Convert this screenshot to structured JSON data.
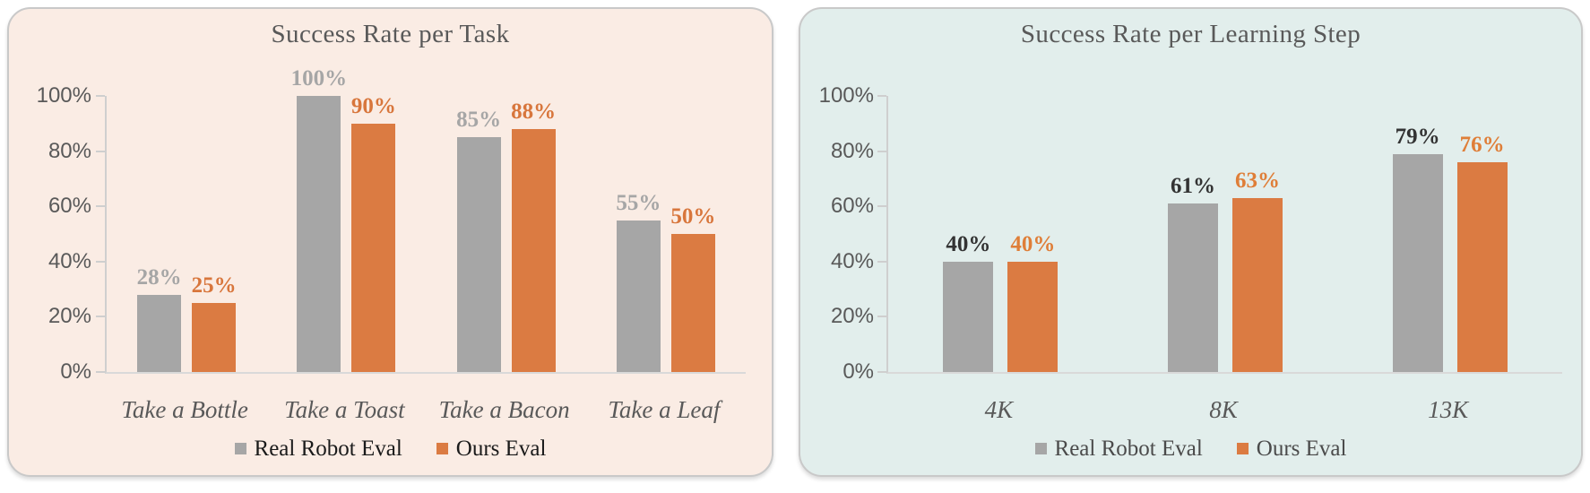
{
  "page": {
    "background": "#FFFFFF"
  },
  "colors": {
    "gray_series": "#A6A6A6",
    "orange_series": "#DB7B42",
    "axis_text": "#595959",
    "title_text": "#595959",
    "axis_line": "#CFCFCF"
  },
  "chart_data": [
    {
      "type": "bar",
      "title": "Success Rate per Task",
      "categories": [
        "Take a Bottle",
        "Take a Toast",
        "Take a Bacon",
        "Take a Leaf"
      ],
      "series": [
        {
          "name": "Real Robot Eval",
          "values": [
            28,
            100,
            85,
            55
          ]
        },
        {
          "name": "Ours Eval",
          "values": [
            25,
            90,
            88,
            50
          ]
        }
      ],
      "value_suffix": "%",
      "xlabel": "",
      "ylabel": "",
      "ylim": [
        0,
        100
      ],
      "y_tick_labels": [
        "100%",
        "80%",
        "60%",
        "40%",
        "20%",
        "0%"
      ],
      "grid": false,
      "legend_position": "bottom",
      "legend_labels": [
        "Real Robot Eval",
        "Ours Eval"
      ],
      "panel_bg": "#FAECE4",
      "bar_colors": [
        "#A6A6A6",
        "#DB7B42"
      ],
      "label_colors": [
        "#A6A6A6",
        "#D8763C"
      ],
      "legend_text_color": "#1A1A1A"
    },
    {
      "type": "bar",
      "title": "Success Rate per Learning Step",
      "categories": [
        "4K",
        "8K",
        "13K"
      ],
      "series": [
        {
          "name": "Real Robot Eval",
          "values": [
            40,
            61,
            79
          ]
        },
        {
          "name": "Ours Eval",
          "values": [
            40,
            63,
            76
          ]
        }
      ],
      "value_suffix": "%",
      "xlabel": "",
      "ylabel": "",
      "ylim": [
        0,
        100
      ],
      "y_tick_labels": [
        "100%",
        "80%",
        "60%",
        "40%",
        "20%",
        "0%"
      ],
      "grid": false,
      "legend_position": "bottom",
      "legend_labels": [
        "Real Robot Eval",
        "Ours Eval"
      ],
      "panel_bg": "#E2EEEC",
      "bar_colors": [
        "#A6A6A6",
        "#DB7B42"
      ],
      "label_colors": [
        "#333333",
        "#DF7E38"
      ],
      "legend_text_color": "#4A4A4A"
    }
  ]
}
